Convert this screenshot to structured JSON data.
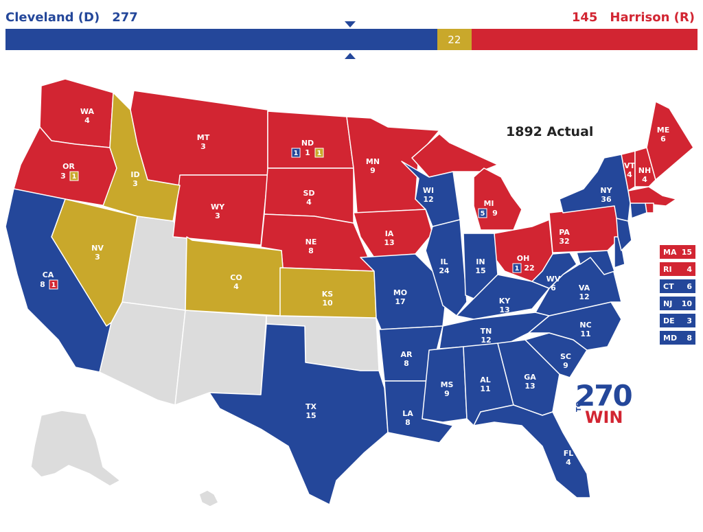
{
  "header": {
    "dem_label": "Cleveland (D)",
    "dem_votes": "277",
    "rep_label": "Harrison (R)",
    "rep_votes": "145",
    "other_votes": "22"
  },
  "bar": {
    "dem": 277,
    "other": 22,
    "rep": 145
  },
  "colors": {
    "dem": "#24479a",
    "rep": "#d22532",
    "other": "#c9a82b",
    "none": "#dcdcdc",
    "border": "#ffffff"
  },
  "map_title": "1892 Actual",
  "states": [
    {
      "abbr": "WA",
      "ev": "4",
      "party": "rep"
    },
    {
      "abbr": "OR",
      "ev": "3",
      "party": "rep",
      "split": "1",
      "split_party": "other"
    },
    {
      "abbr": "CA",
      "ev": "8",
      "party": "dem",
      "split": "1",
      "split_party": "rep"
    },
    {
      "abbr": "ID",
      "ev": "3",
      "party": "other"
    },
    {
      "abbr": "NV",
      "ev": "3",
      "party": "other"
    },
    {
      "abbr": "MT",
      "ev": "3",
      "party": "rep"
    },
    {
      "abbr": "WY",
      "ev": "3",
      "party": "rep"
    },
    {
      "abbr": "CO",
      "ev": "4",
      "party": "other"
    },
    {
      "abbr": "ND",
      "ev": "1",
      "party": "rep",
      "split_left": "1",
      "split_left_party": "dem",
      "split": "1",
      "split_party": "other"
    },
    {
      "abbr": "SD",
      "ev": "4",
      "party": "rep"
    },
    {
      "abbr": "NE",
      "ev": "8",
      "party": "rep"
    },
    {
      "abbr": "KS",
      "ev": "10",
      "party": "other"
    },
    {
      "abbr": "TX",
      "ev": "15",
      "party": "dem"
    },
    {
      "abbr": "MN",
      "ev": "9",
      "party": "rep"
    },
    {
      "abbr": "IA",
      "ev": "13",
      "party": "rep"
    },
    {
      "abbr": "MO",
      "ev": "17",
      "party": "dem"
    },
    {
      "abbr": "AR",
      "ev": "8",
      "party": "dem"
    },
    {
      "abbr": "LA",
      "ev": "8",
      "party": "dem"
    },
    {
      "abbr": "WI",
      "ev": "12",
      "party": "dem"
    },
    {
      "abbr": "IL",
      "ev": "24",
      "party": "dem"
    },
    {
      "abbr": "MI",
      "ev": "9",
      "party": "rep",
      "split_left": "5",
      "split_left_party": "dem"
    },
    {
      "abbr": "IN",
      "ev": "15",
      "party": "dem"
    },
    {
      "abbr": "OH",
      "ev": "22",
      "party": "rep",
      "split_left": "1",
      "split_left_party": "dem"
    },
    {
      "abbr": "KY",
      "ev": "13",
      "party": "dem"
    },
    {
      "abbr": "TN",
      "ev": "12",
      "party": "dem"
    },
    {
      "abbr": "MS",
      "ev": "9",
      "party": "dem"
    },
    {
      "abbr": "AL",
      "ev": "11",
      "party": "dem"
    },
    {
      "abbr": "GA",
      "ev": "13",
      "party": "dem"
    },
    {
      "abbr": "FL",
      "ev": "4",
      "party": "dem"
    },
    {
      "abbr": "SC",
      "ev": "9",
      "party": "dem"
    },
    {
      "abbr": "NC",
      "ev": "11",
      "party": "dem"
    },
    {
      "abbr": "VA",
      "ev": "12",
      "party": "dem"
    },
    {
      "abbr": "WV",
      "ev": "6",
      "party": "dem"
    },
    {
      "abbr": "PA",
      "ev": "32",
      "party": "rep"
    },
    {
      "abbr": "NY",
      "ev": "36",
      "party": "dem"
    },
    {
      "abbr": "VT",
      "ev": "4",
      "party": "rep"
    },
    {
      "abbr": "NH",
      "ev": "4",
      "party": "rep"
    },
    {
      "abbr": "ME",
      "ev": "6",
      "party": "rep"
    }
  ],
  "legend": [
    {
      "abbr": "MA",
      "ev": "15",
      "party": "rep"
    },
    {
      "abbr": "RI",
      "ev": "4",
      "party": "rep"
    },
    {
      "abbr": "CT",
      "ev": "6",
      "party": "dem"
    },
    {
      "abbr": "NJ",
      "ev": "10",
      "party": "dem"
    },
    {
      "abbr": "DE",
      "ev": "3",
      "party": "dem"
    },
    {
      "abbr": "MD",
      "ev": "8",
      "party": "dem"
    }
  ],
  "logo": {
    "number": "270",
    "to": "TO",
    "win": "WIN"
  }
}
